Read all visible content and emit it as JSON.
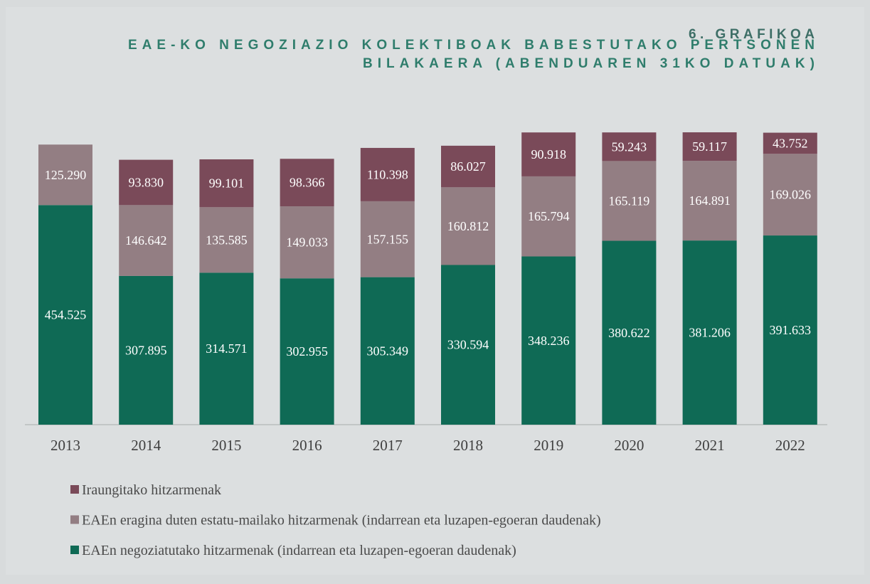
{
  "chart_data": {
    "type": "stacked-bar",
    "heading": "6. GRAFIKOA",
    "title_lines": [
      "EAE-KO NEGOZIAZIO KOLEKTIBOAK BABESTUTAKO PERTSONEN",
      "BILAKAERA (ABENDUAREN 31KO DATUAK)"
    ],
    "categories": [
      "2013",
      "2014",
      "2015",
      "2016",
      "2017",
      "2018",
      "2019",
      "2020",
      "2021",
      "2022"
    ],
    "series": [
      {
        "name": "EAEn negoziatutako hitzarmenak (indarrean eta luzapen-egoeran daudenak)",
        "color": "#0f6a55",
        "values": [
          454525,
          307895,
          314571,
          302955,
          305349,
          330594,
          348236,
          380622,
          381206,
          391633
        ],
        "value_labels": [
          "454.525",
          "307.895",
          "314.571",
          "302.955",
          "305.349",
          "330.594",
          "348.236",
          "380.622",
          "381.206",
          "391.633"
        ]
      },
      {
        "name": "EAEn eragina duten estatu-mailako hitzarmenak (indarrean eta luzapen-egoeran daudenak)",
        "color": "#937e83",
        "values": [
          125290,
          146642,
          135585,
          149033,
          157155,
          160812,
          165794,
          165119,
          164891,
          169026
        ],
        "value_labels": [
          "125.290",
          "146.642",
          "135.585",
          "149.033",
          "157.155",
          "160.812",
          "165.794",
          "165.119",
          "164.891",
          "169.026"
        ]
      },
      {
        "name": "Iraungitako hitzarmenak",
        "color": "#7a4a59",
        "values": [
          null,
          93830,
          99101,
          98366,
          110398,
          86027,
          90918,
          59243,
          59117,
          43752
        ],
        "value_labels": [
          null,
          "93.830",
          "99.101",
          "98.366",
          "110.398",
          "86.027",
          "90.918",
          "59.243",
          "59.117",
          "43.752"
        ]
      }
    ]
  }
}
